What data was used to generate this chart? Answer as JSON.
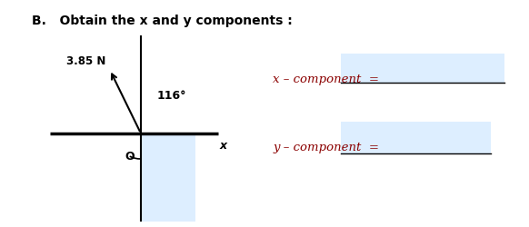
{
  "title": "B.   Obtain the x and y components :",
  "title_fontsize": 10,
  "title_fontweight": "bold",
  "bg_color": "#ffffff",
  "axis_color": "#000000",
  "vector_label": "3.85 N",
  "angle_label": "116°",
  "origin_label": "O",
  "x_label": "x",
  "rect_color": "#ddeeff",
  "answer_box_color": "#ddeeff",
  "x_comp_label": "x – component  =",
  "y_comp_label": "y – component  =",
  "comp_label_color": "#8B0000",
  "line_color": "#000000"
}
